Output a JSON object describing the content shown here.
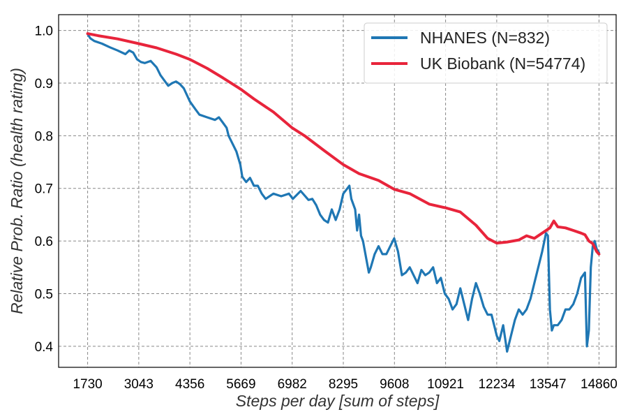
{
  "chart_data": {
    "type": "line",
    "title": "",
    "xlabel": "Steps per day [sum of steps]",
    "ylabel": "Relative Prob. Ratio (health rating)",
    "xlim": [
      985,
      15300
    ],
    "ylim": [
      0.36,
      1.03
    ],
    "x_ticks": [
      1730,
      3043,
      4356,
      5669,
      6982,
      8295,
      9608,
      10921,
      12234,
      13547,
      14860
    ],
    "x_tick_labels": [
      "1730",
      "3043",
      "4356",
      "5669",
      "6982",
      "8295",
      "9608",
      "10921",
      "12234",
      "13547",
      "14860"
    ],
    "y_ticks": [
      0.4,
      0.5,
      0.6,
      0.7,
      0.8,
      0.9,
      1.0
    ],
    "y_tick_labels": [
      "0.4",
      "0.5",
      "0.6",
      "0.7",
      "0.8",
      "0.9",
      "1.0"
    ],
    "grid": true,
    "legend_position": "top-right",
    "series": [
      {
        "name": "NHANES (N=832)",
        "color": "#1f77b4",
        "points": [
          [
            1730,
            0.993
          ],
          [
            1800,
            0.985
          ],
          [
            1900,
            0.98
          ],
          [
            2100,
            0.975
          ],
          [
            2300,
            0.968
          ],
          [
            2500,
            0.962
          ],
          [
            2700,
            0.955
          ],
          [
            2800,
            0.962
          ],
          [
            2900,
            0.958
          ],
          [
            3000,
            0.945
          ],
          [
            3100,
            0.94
          ],
          [
            3200,
            0.938
          ],
          [
            3350,
            0.942
          ],
          [
            3500,
            0.93
          ],
          [
            3600,
            0.915
          ],
          [
            3700,
            0.905
          ],
          [
            3800,
            0.895
          ],
          [
            3900,
            0.9
          ],
          [
            4000,
            0.903
          ],
          [
            4100,
            0.898
          ],
          [
            4200,
            0.89
          ],
          [
            4356,
            0.865
          ],
          [
            4500,
            0.85
          ],
          [
            4600,
            0.84
          ],
          [
            4800,
            0.835
          ],
          [
            5000,
            0.83
          ],
          [
            5100,
            0.835
          ],
          [
            5200,
            0.825
          ],
          [
            5300,
            0.815
          ],
          [
            5350,
            0.8
          ],
          [
            5450,
            0.785
          ],
          [
            5550,
            0.77
          ],
          [
            5650,
            0.745
          ],
          [
            5700,
            0.722
          ],
          [
            5800,
            0.712
          ],
          [
            5900,
            0.72
          ],
          [
            6000,
            0.705
          ],
          [
            6100,
            0.705
          ],
          [
            6200,
            0.69
          ],
          [
            6300,
            0.68
          ],
          [
            6500,
            0.69
          ],
          [
            6700,
            0.685
          ],
          [
            6900,
            0.69
          ],
          [
            7000,
            0.68
          ],
          [
            7200,
            0.695
          ],
          [
            7400,
            0.678
          ],
          [
            7500,
            0.68
          ],
          [
            7600,
            0.668
          ],
          [
            7700,
            0.65
          ],
          [
            7800,
            0.64
          ],
          [
            7900,
            0.635
          ],
          [
            8000,
            0.66
          ],
          [
            8100,
            0.64
          ],
          [
            8200,
            0.66
          ],
          [
            8295,
            0.69
          ],
          [
            8400,
            0.7
          ],
          [
            8450,
            0.705
          ],
          [
            8500,
            0.68
          ],
          [
            8600,
            0.66
          ],
          [
            8650,
            0.62
          ],
          [
            8700,
            0.65
          ],
          [
            8750,
            0.61
          ],
          [
            8800,
            0.6
          ],
          [
            8900,
            0.56
          ],
          [
            8950,
            0.54
          ],
          [
            9000,
            0.55
          ],
          [
            9100,
            0.575
          ],
          [
            9200,
            0.59
          ],
          [
            9300,
            0.575
          ],
          [
            9400,
            0.575
          ],
          [
            9500,
            0.59
          ],
          [
            9600,
            0.605
          ],
          [
            9700,
            0.58
          ],
          [
            9800,
            0.535
          ],
          [
            9900,
            0.54
          ],
          [
            10000,
            0.55
          ],
          [
            10200,
            0.52
          ],
          [
            10300,
            0.545
          ],
          [
            10400,
            0.535
          ],
          [
            10500,
            0.54
          ],
          [
            10600,
            0.55
          ],
          [
            10700,
            0.52
          ],
          [
            10800,
            0.53
          ],
          [
            10900,
            0.5
          ],
          [
            11000,
            0.49
          ],
          [
            11100,
            0.47
          ],
          [
            11200,
            0.48
          ],
          [
            11300,
            0.51
          ],
          [
            11400,
            0.48
          ],
          [
            11500,
            0.45
          ],
          [
            11600,
            0.49
          ],
          [
            11700,
            0.52
          ],
          [
            11800,
            0.5
          ],
          [
            11900,
            0.475
          ],
          [
            12000,
            0.46
          ],
          [
            12100,
            0.46
          ],
          [
            12234,
            0.42
          ],
          [
            12300,
            0.41
          ],
          [
            12400,
            0.44
          ],
          [
            12500,
            0.39
          ],
          [
            12600,
            0.42
          ],
          [
            12700,
            0.45
          ],
          [
            12800,
            0.47
          ],
          [
            12900,
            0.46
          ],
          [
            13000,
            0.47
          ],
          [
            13100,
            0.49
          ],
          [
            13200,
            0.52
          ],
          [
            13300,
            0.55
          ],
          [
            13400,
            0.58
          ],
          [
            13500,
            0.615
          ],
          [
            13547,
            0.61
          ],
          [
            13600,
            0.47
          ],
          [
            13650,
            0.43
          ],
          [
            13700,
            0.44
          ],
          [
            13800,
            0.44
          ],
          [
            13900,
            0.45
          ],
          [
            14000,
            0.47
          ],
          [
            14100,
            0.47
          ],
          [
            14200,
            0.48
          ],
          [
            14300,
            0.5
          ],
          [
            14400,
            0.53
          ],
          [
            14500,
            0.54
          ],
          [
            14550,
            0.4
          ],
          [
            14600,
            0.43
          ],
          [
            14650,
            0.55
          ],
          [
            14700,
            0.59
          ],
          [
            14750,
            0.6
          ],
          [
            14800,
            0.585
          ],
          [
            14860,
            0.578
          ]
        ]
      },
      {
        "name": "UK Biobank (N=54774)",
        "color": "#e8243b",
        "points": [
          [
            1730,
            0.994
          ],
          [
            2000,
            0.99
          ],
          [
            2500,
            0.984
          ],
          [
            3043,
            0.975
          ],
          [
            3500,
            0.967
          ],
          [
            4000,
            0.955
          ],
          [
            4356,
            0.945
          ],
          [
            4800,
            0.928
          ],
          [
            5200,
            0.91
          ],
          [
            5669,
            0.888
          ],
          [
            6000,
            0.87
          ],
          [
            6500,
            0.845
          ],
          [
            6982,
            0.815
          ],
          [
            7300,
            0.8
          ],
          [
            7800,
            0.772
          ],
          [
            8295,
            0.745
          ],
          [
            8700,
            0.728
          ],
          [
            9200,
            0.715
          ],
          [
            9608,
            0.698
          ],
          [
            10000,
            0.69
          ],
          [
            10500,
            0.67
          ],
          [
            10921,
            0.663
          ],
          [
            11300,
            0.655
          ],
          [
            11700,
            0.63
          ],
          [
            12000,
            0.605
          ],
          [
            12234,
            0.596
          ],
          [
            12500,
            0.598
          ],
          [
            12800,
            0.602
          ],
          [
            13000,
            0.61
          ],
          [
            13200,
            0.605
          ],
          [
            13400,
            0.615
          ],
          [
            13600,
            0.625
          ],
          [
            13700,
            0.638
          ],
          [
            13800,
            0.627
          ],
          [
            14000,
            0.625
          ],
          [
            14200,
            0.62
          ],
          [
            14400,
            0.615
          ],
          [
            14500,
            0.612
          ],
          [
            14600,
            0.6
          ],
          [
            14700,
            0.595
          ],
          [
            14800,
            0.58
          ],
          [
            14860,
            0.575
          ]
        ]
      }
    ]
  }
}
